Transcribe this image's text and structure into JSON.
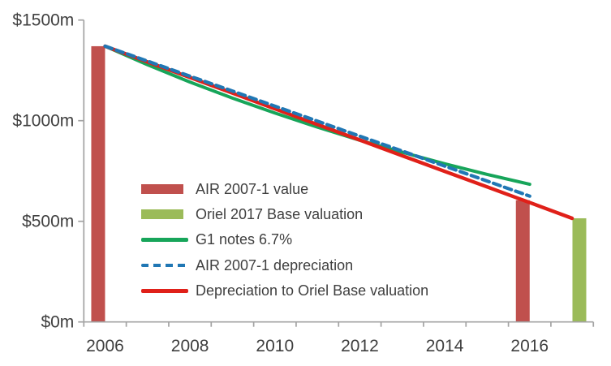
{
  "chart_data": {
    "type": "combo-bar-line",
    "title": "",
    "background": "#ffffff",
    "axis_color": "#a3a3a3",
    "label_color": "#3f3f3f",
    "grid": "off",
    "y_axis": {
      "tick_labels": [
        "$0m",
        "$500m",
        "$1000m",
        "$1500m"
      ],
      "tick_values": [
        0,
        500,
        1000,
        1500
      ],
      "min": 0,
      "max": 1500,
      "unit": "$m"
    },
    "x_axis": {
      "year_start": 2006,
      "year_end": 2017,
      "tick_labels": [
        "2006",
        "2008",
        "2010",
        "2012",
        "2014",
        "2016"
      ],
      "label_years": [
        2006,
        2008,
        2010,
        2012,
        2014,
        2016
      ]
    },
    "bar_series": [
      {
        "name": "AIR 2007-1 value",
        "color": "#c0504d",
        "slot": "left",
        "years": [
          2006,
          2016
        ],
        "values": [
          1370,
          605
        ]
      },
      {
        "name": "Oriel 2017 Base valuation",
        "color": "#9bbb59",
        "slot": "right",
        "years": [
          2017
        ],
        "values": [
          515
        ]
      }
    ],
    "line_series": [
      {
        "name": "G1 notes 6.7%",
        "color": "#17a55a",
        "style": "solid",
        "width": 4,
        "years": [
          2006,
          2007,
          2008,
          2009,
          2010,
          2011,
          2012,
          2013,
          2014,
          2015,
          2016
        ],
        "values": [
          1370,
          1278,
          1192,
          1112,
          1038,
          968,
          903,
          843,
          786,
          733,
          684
        ]
      },
      {
        "name": "Depreciation to Oriel Base valuation",
        "color": "#e02019",
        "style": "solid",
        "width": 4.4,
        "years": [
          2006,
          2007,
          2008,
          2009,
          2010,
          2011,
          2012,
          2013,
          2014,
          2015,
          2016,
          2017
        ],
        "values": [
          1370,
          1292,
          1215,
          1137,
          1059,
          981,
          904,
          826,
          748,
          671,
          593,
          515
        ]
      },
      {
        "name": "AIR 2007-1 depreciation",
        "color": "#2077b4",
        "style": "dashed",
        "width": 4.2,
        "years": [
          2006,
          2007,
          2008,
          2009,
          2010,
          2011,
          2012,
          2013,
          2014,
          2015,
          2016
        ],
        "values": [
          1370,
          1296,
          1221,
          1147,
          1072,
          998,
          923,
          849,
          774,
          700,
          625
        ]
      }
    ],
    "legend": {
      "position": "inside-left",
      "items": [
        {
          "label": "AIR 2007-1 value",
          "swatch": "bar",
          "color": "#c0504d"
        },
        {
          "label": "Oriel 2017 Base valuation",
          "swatch": "bar",
          "color": "#9bbb59"
        },
        {
          "label": "G1 notes 6.7%",
          "swatch": "line",
          "color": "#17a55a"
        },
        {
          "label": "AIR 2007-1 depreciation",
          "swatch": "dash",
          "color": "#2077b4"
        },
        {
          "label": "Depreciation to Oriel Base valuation",
          "swatch": "line",
          "color": "#e02019"
        }
      ]
    }
  }
}
